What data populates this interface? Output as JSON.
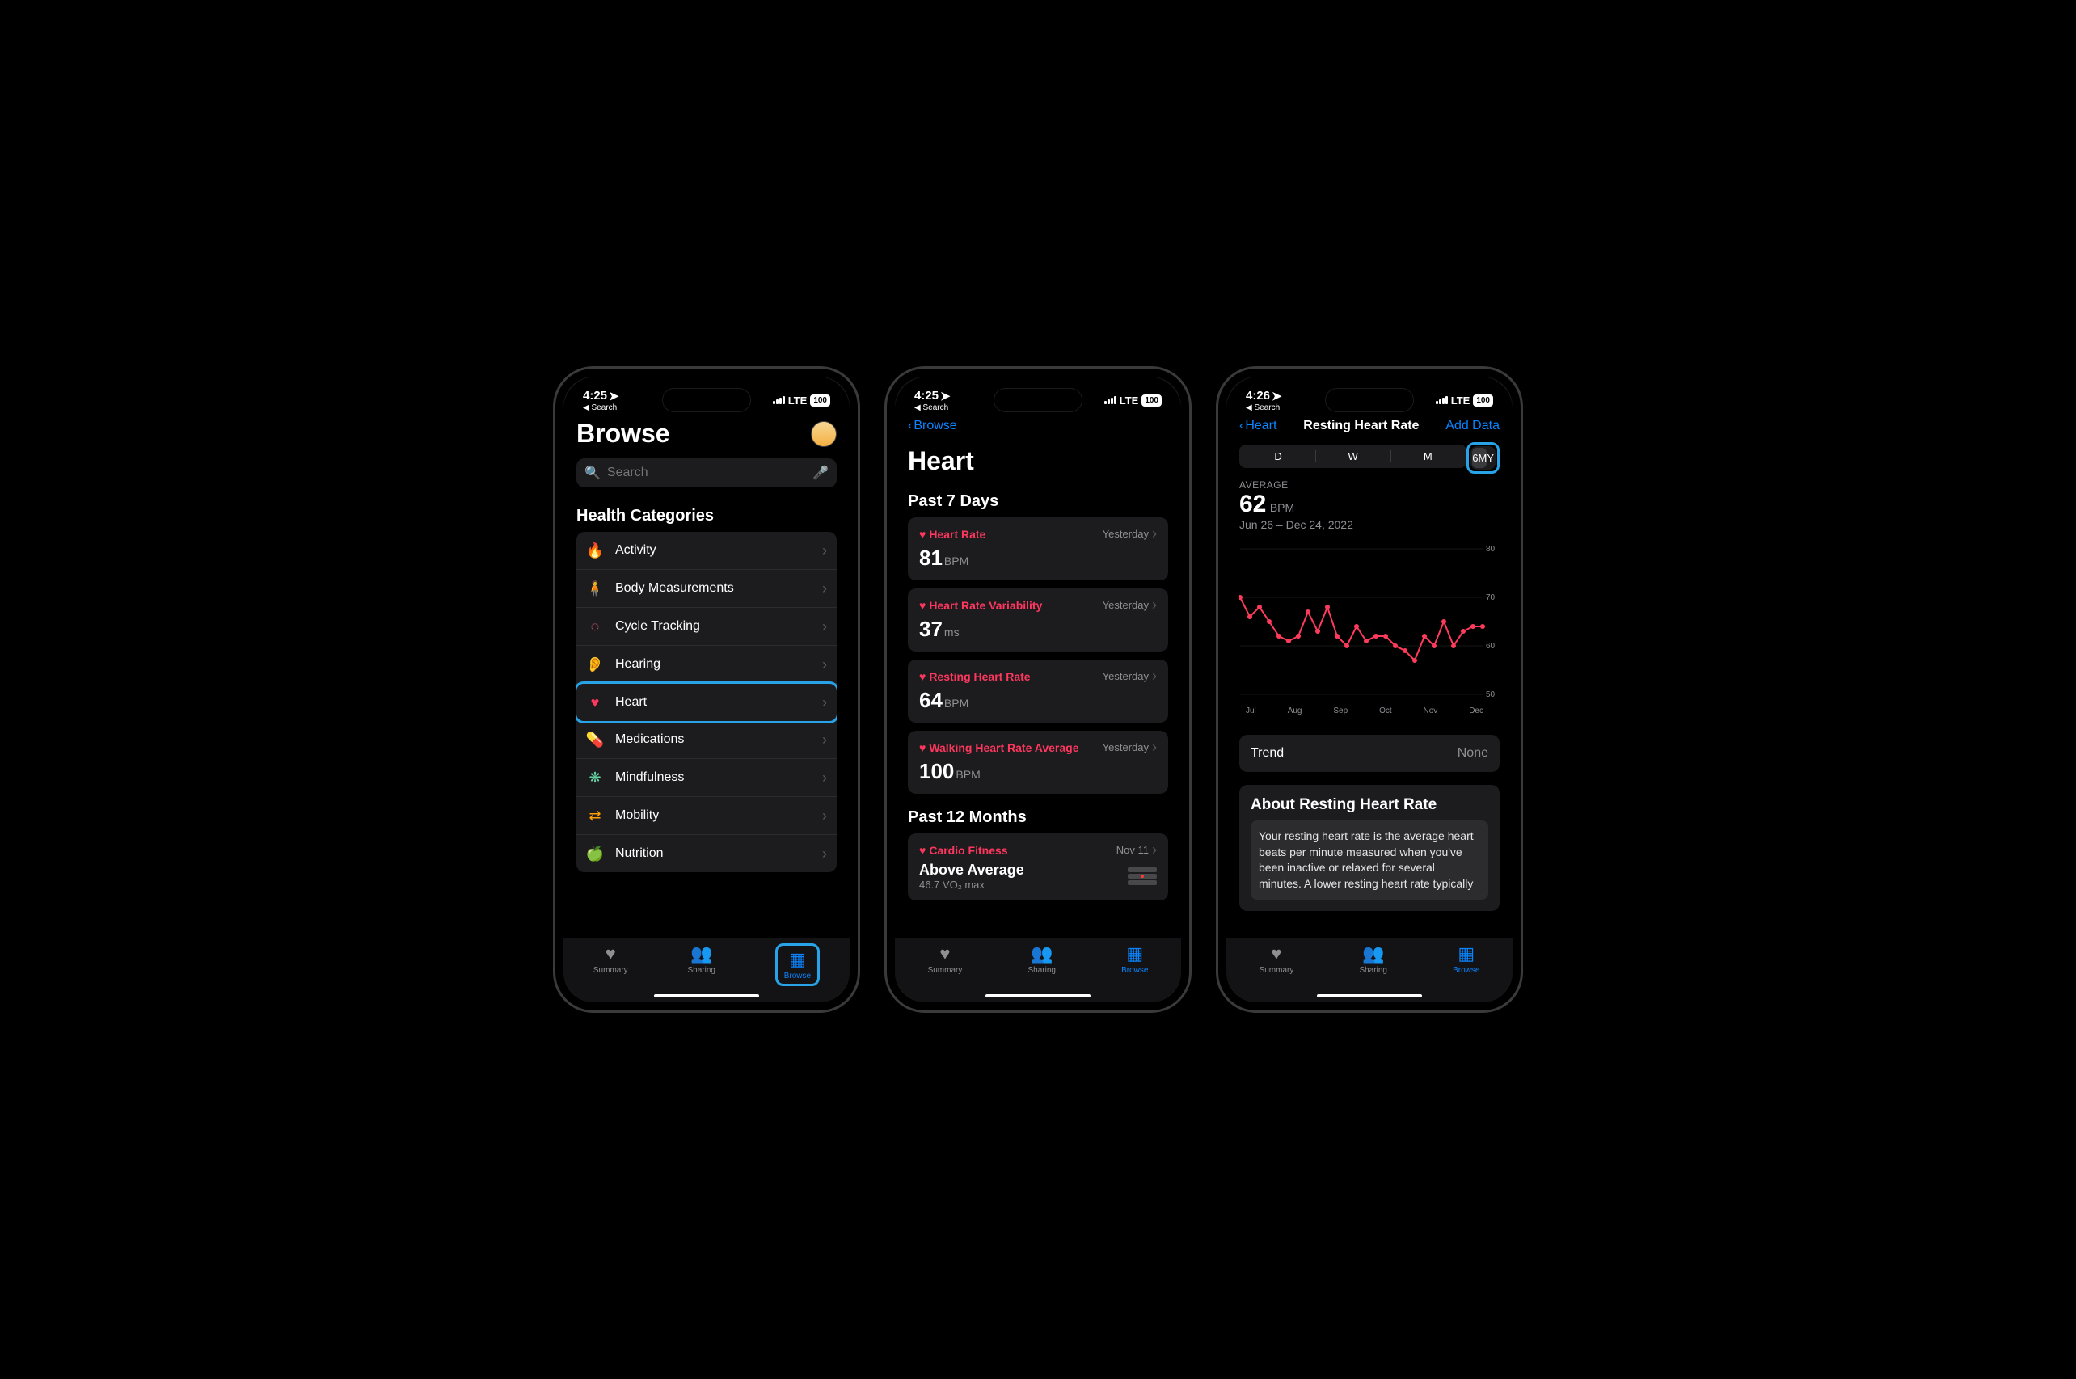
{
  "colors": {
    "accent": "#0a84ff",
    "heart": "#ff375f",
    "chart_line": "#ff3b5c",
    "highlight_border": "#29a3e8",
    "bg_card": "#1c1c1e",
    "text_secondary": "#8e8e93"
  },
  "tab_bar": {
    "items": [
      {
        "label": "Summary",
        "icon": "♥"
      },
      {
        "label": "Sharing",
        "icon": "👥"
      },
      {
        "label": "Browse",
        "icon": "▦"
      }
    ],
    "active": "Browse"
  },
  "screen1": {
    "status": {
      "time": "4:25",
      "back": "Search",
      "network": "LTE",
      "battery": "100"
    },
    "title": "Browse",
    "search_placeholder": "Search",
    "section": "Health Categories",
    "categories": [
      {
        "icon": "🔥",
        "label": "Activity",
        "color": "#ff9500"
      },
      {
        "icon": "🧍",
        "label": "Body Measurements",
        "color": "#bf5af2"
      },
      {
        "icon": "◌",
        "label": "Cycle Tracking",
        "color": "#ff6482"
      },
      {
        "icon": "👂",
        "label": "Hearing",
        "color": "#0a84ff"
      },
      {
        "icon": "♥",
        "label": "Heart",
        "color": "#ff375f",
        "highlighted": true
      },
      {
        "icon": "💊",
        "label": "Medications",
        "color": "#32d0c7"
      },
      {
        "icon": "❋",
        "label": "Mindfulness",
        "color": "#64d2a2"
      },
      {
        "icon": "⇄",
        "label": "Mobility",
        "color": "#ff9f0a"
      },
      {
        "icon": "🍏",
        "label": "Nutrition",
        "color": "#30d158"
      }
    ]
  },
  "screen2": {
    "status": {
      "time": "4:25",
      "back": "Search",
      "network": "LTE",
      "battery": "100"
    },
    "nav_back": "Browse",
    "title": "Heart",
    "section1": "Past 7 Days",
    "cards": [
      {
        "title": "Heart Rate",
        "date": "Yesterday",
        "value": "81",
        "unit": "BPM"
      },
      {
        "title": "Heart Rate Variability",
        "date": "Yesterday",
        "value": "37",
        "unit": "ms"
      },
      {
        "title": "Resting Heart Rate",
        "date": "Yesterday",
        "value": "64",
        "unit": "BPM"
      },
      {
        "title": "Walking Heart Rate Average",
        "date": "Yesterday",
        "value": "100",
        "unit": "BPM"
      }
    ],
    "section2": "Past 12 Months",
    "cardio": {
      "title": "Cardio Fitness",
      "date": "Nov 11",
      "headline": "Above Average",
      "sub": "46.7 VO₂ max"
    }
  },
  "screen3": {
    "status": {
      "time": "4:26",
      "back": "Search",
      "network": "LTE",
      "battery": "100"
    },
    "nav_back": "Heart",
    "nav_title": "Resting Heart Rate",
    "nav_action": "Add Data",
    "segments": [
      "D",
      "W",
      "M",
      "6M",
      "Y"
    ],
    "selected_segment": "6M",
    "avg_label": "AVERAGE",
    "avg_value": "62",
    "avg_unit": "BPM",
    "date_range": "Jun 26 – Dec 24, 2022",
    "chart": {
      "ylim": [
        50,
        80
      ],
      "yticks": [
        50,
        60,
        70,
        80
      ],
      "x_labels": [
        "Jul",
        "Aug",
        "Sep",
        "Oct",
        "Nov",
        "Dec"
      ],
      "line_color": "#ff3b5c",
      "marker_color": "#ff3b5c",
      "grid_color": "#2c2c2e",
      "values": [
        70,
        66,
        68,
        65,
        62,
        61,
        62,
        67,
        63,
        68,
        62,
        60,
        64,
        61,
        62,
        62,
        60,
        59,
        57,
        62,
        60,
        65,
        60,
        63,
        64,
        64
      ]
    },
    "trend_label": "Trend",
    "trend_value": "None",
    "about_title": "About Resting Heart Rate",
    "about_body": "Your resting heart rate is the average heart beats per minute measured when you've been inactive or relaxed for several minutes. A lower resting heart rate typically"
  }
}
